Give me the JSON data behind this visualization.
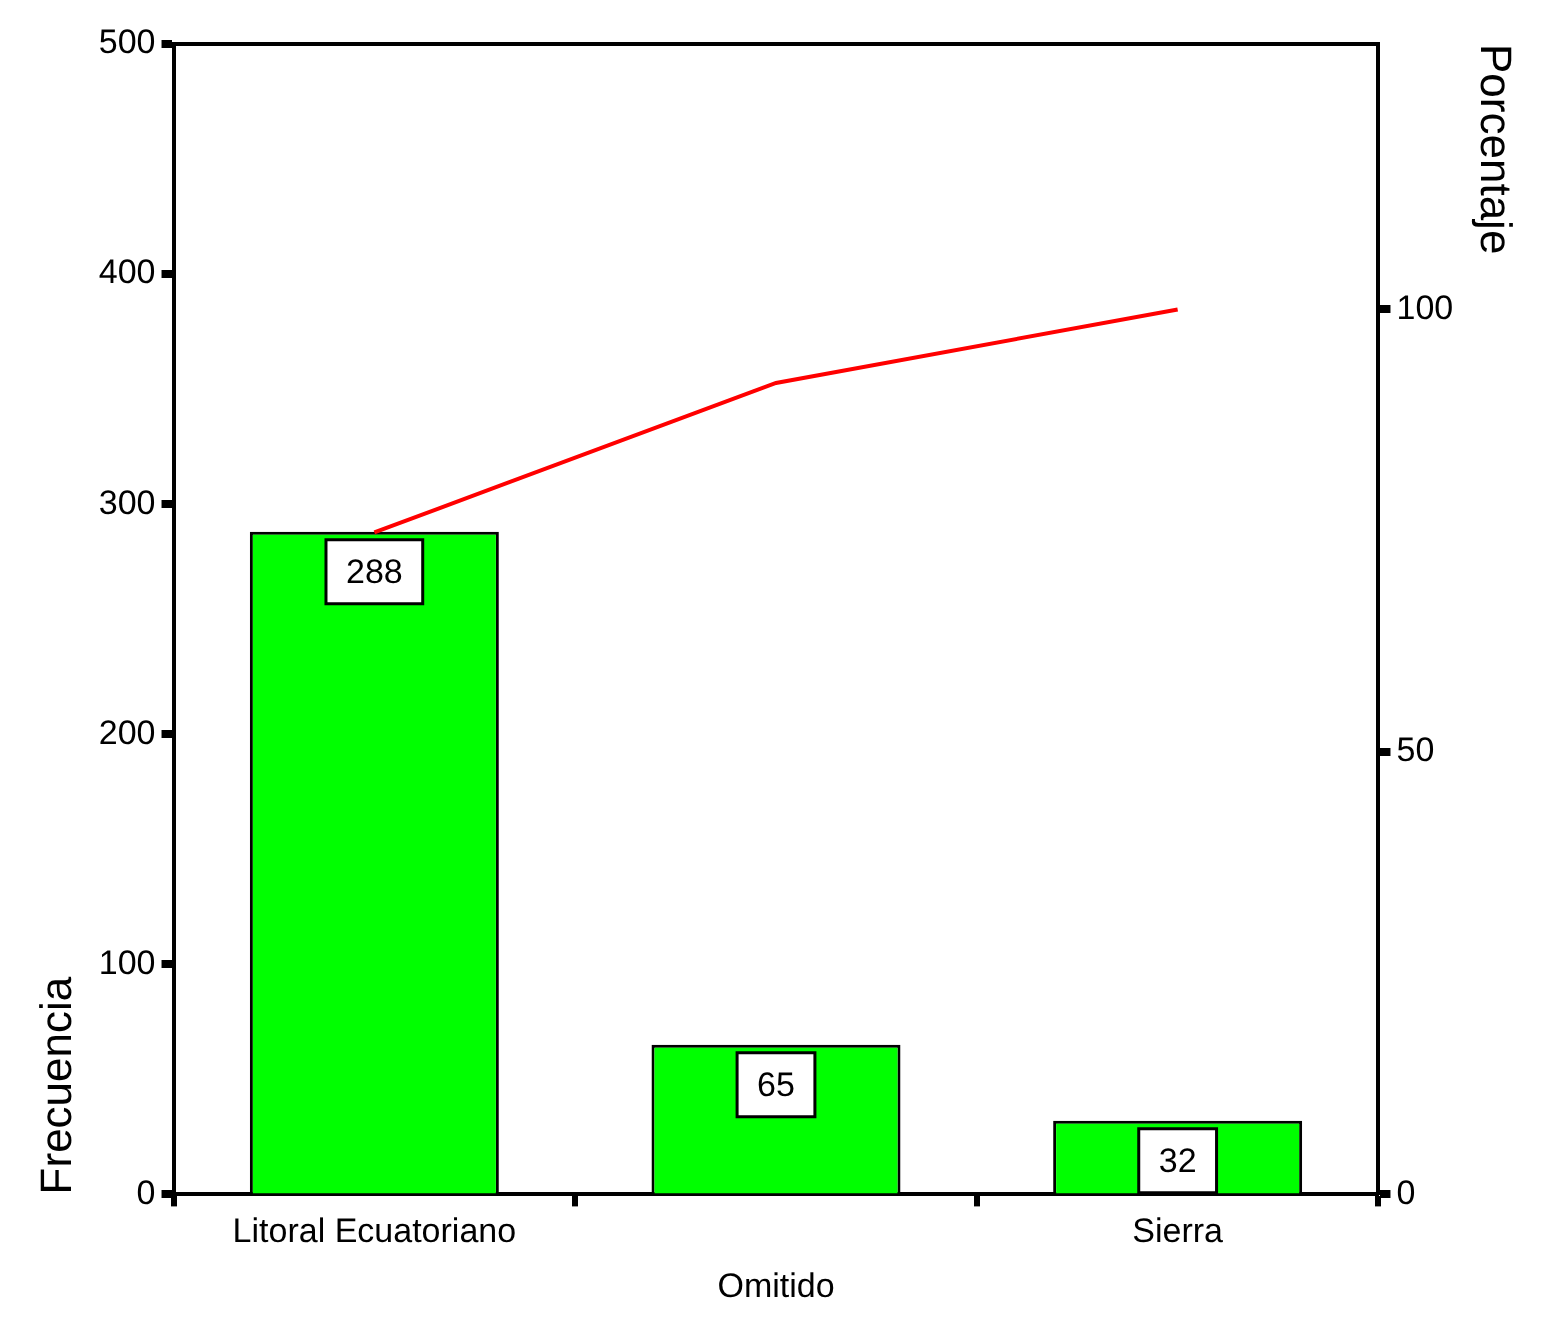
{
  "chart_data": {
    "type": "bar",
    "categories": [
      "Litoral Ecuatoriano",
      null,
      "Sierra"
    ],
    "xlabel": "Omitido",
    "ylabel": "Frecuencia",
    "y2label": "Porcentaje",
    "series": [
      {
        "color": "#00ff00",
        "values": [
          288,
          65,
          32
        ],
        "value_labels": [
          "288",
          "65",
          "32"
        ]
      },
      {
        "type": "line",
        "axis": "y2",
        "color": "#ff0000",
        "values": [
          74.8,
          91.7,
          100
        ]
      }
    ],
    "ylim": [
      0,
      500
    ],
    "yticks": [
      0,
      100,
      200,
      300,
      400,
      500
    ],
    "y2lim": [
      0,
      130
    ],
    "y2ticks": [
      0,
      50,
      100
    ]
  }
}
